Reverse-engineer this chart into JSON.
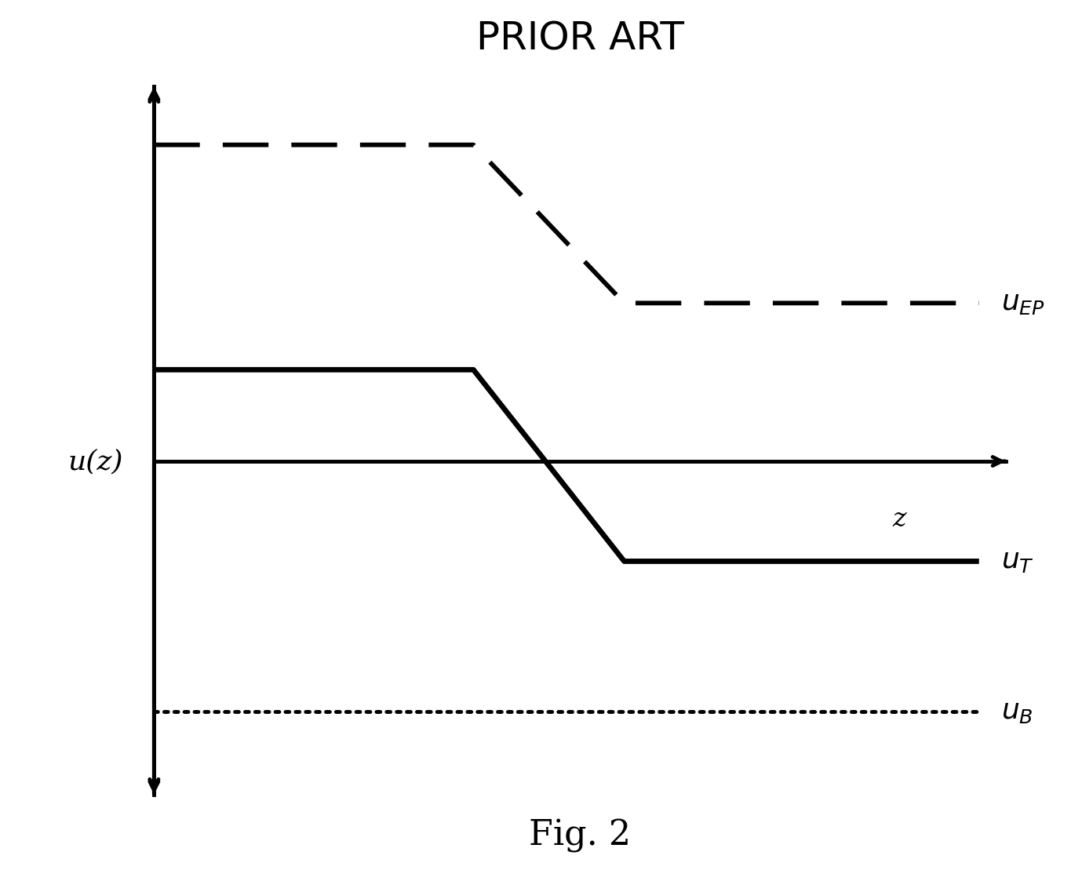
{
  "title": "PRIOR ART",
  "caption": "Fig. 2",
  "background_color": "#ffffff",
  "title_fontsize": 36,
  "caption_fontsize": 32,
  "ylabel_text": "u(z)",
  "zlabel_text": "z",
  "label_EP": "$u_{EP}$",
  "label_T": "$u_T$",
  "label_B": "$u_B$",
  "xlim": [
    -0.5,
    11.5
  ],
  "ylim": [
    -5.0,
    5.5
  ],
  "ax_origin_x": 1.2,
  "ax_origin_y": 0.0,
  "axis_y_max": 4.5,
  "axis_y_min": -4.0,
  "axis_x_end": 10.8,
  "dashed_y_high": 3.8,
  "dashed_y_low": 1.9,
  "dashed_flat1_end": 4.8,
  "dashed_slope_end": 6.5,
  "solid_y_high": 1.1,
  "solid_y_low": -1.2,
  "solid_flat1_end": 4.8,
  "solid_slope_end": 6.5,
  "x_line_end": 10.5,
  "dotted_y": -3.0,
  "line_width": 3.5,
  "line_color": "#000000",
  "annotation_fontsize": 26,
  "ylabel_fontsize": 26,
  "zlabel_fontsize": 24
}
